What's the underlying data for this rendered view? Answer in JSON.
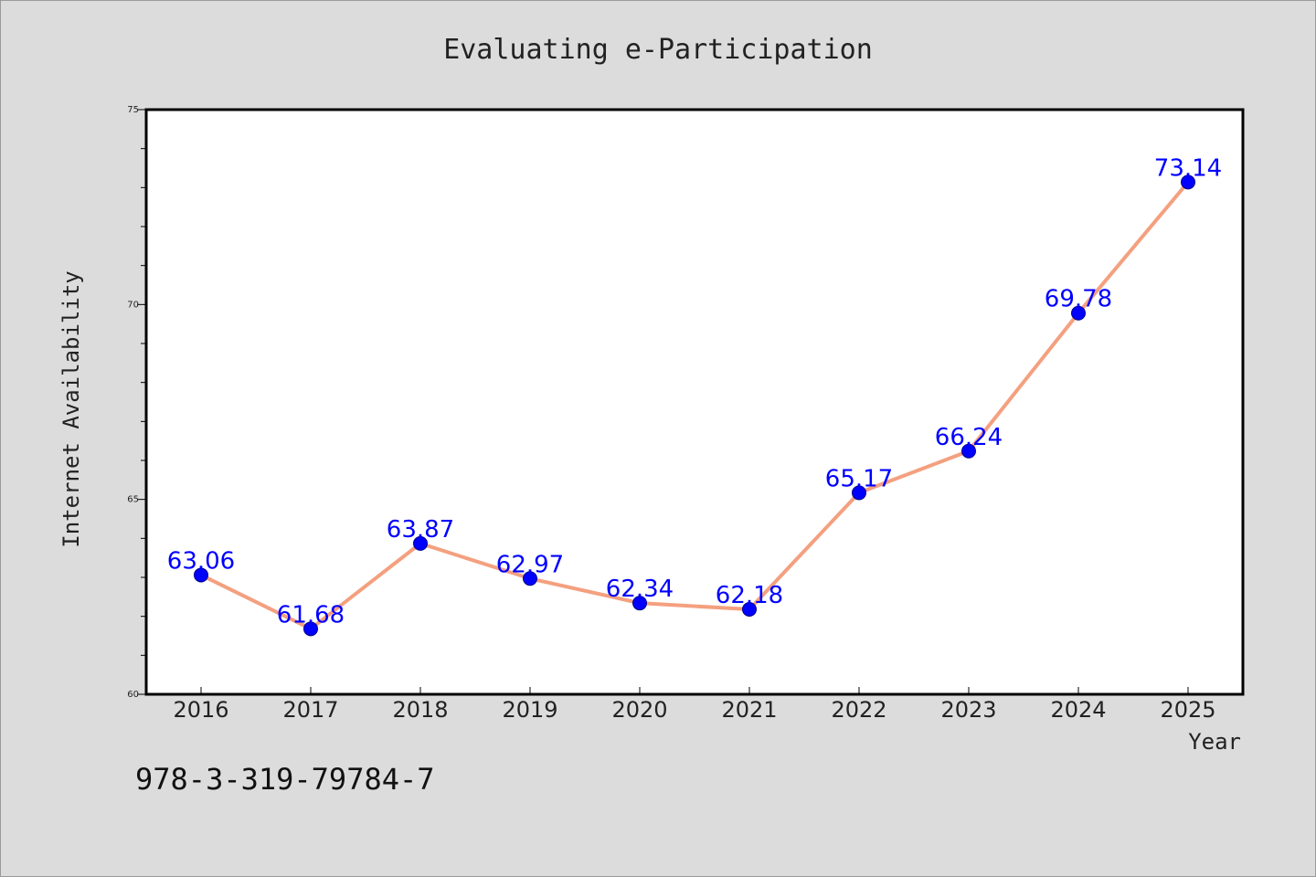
{
  "chart_data": {
    "type": "line",
    "title": "Evaluating e-Participation",
    "xlabel": "Year",
    "ylabel": "Internet Availability",
    "categories": [
      "2016",
      "2017",
      "2018",
      "2019",
      "2020",
      "2021",
      "2022",
      "2023",
      "2024",
      "2025"
    ],
    "series": [
      {
        "values": [
          63.06,
          61.68,
          63.87,
          62.97,
          62.34,
          62.18,
          65.17,
          66.24,
          69.78,
          73.14
        ],
        "line_color": "#f4a07f",
        "marker_color": "#0000ff"
      }
    ],
    "data_labels": [
      "63.06",
      "61.68",
      "63.87",
      "62.97",
      "62.34",
      "62.18",
      "65.17",
      "66.24",
      "69.78",
      "73.14"
    ],
    "ylim": [
      60,
      75
    ],
    "yticks": [
      60,
      65,
      70,
      75
    ],
    "grid": false,
    "legend": "none"
  },
  "footer": {
    "code": "978-3-319-79784-7"
  },
  "colors": {
    "background": "#dcdcdc",
    "plot_background": "#ffffff",
    "axis": "#000000",
    "line": "#f4a07f",
    "marker": "#0000ff",
    "data_label": "#0000ff"
  }
}
